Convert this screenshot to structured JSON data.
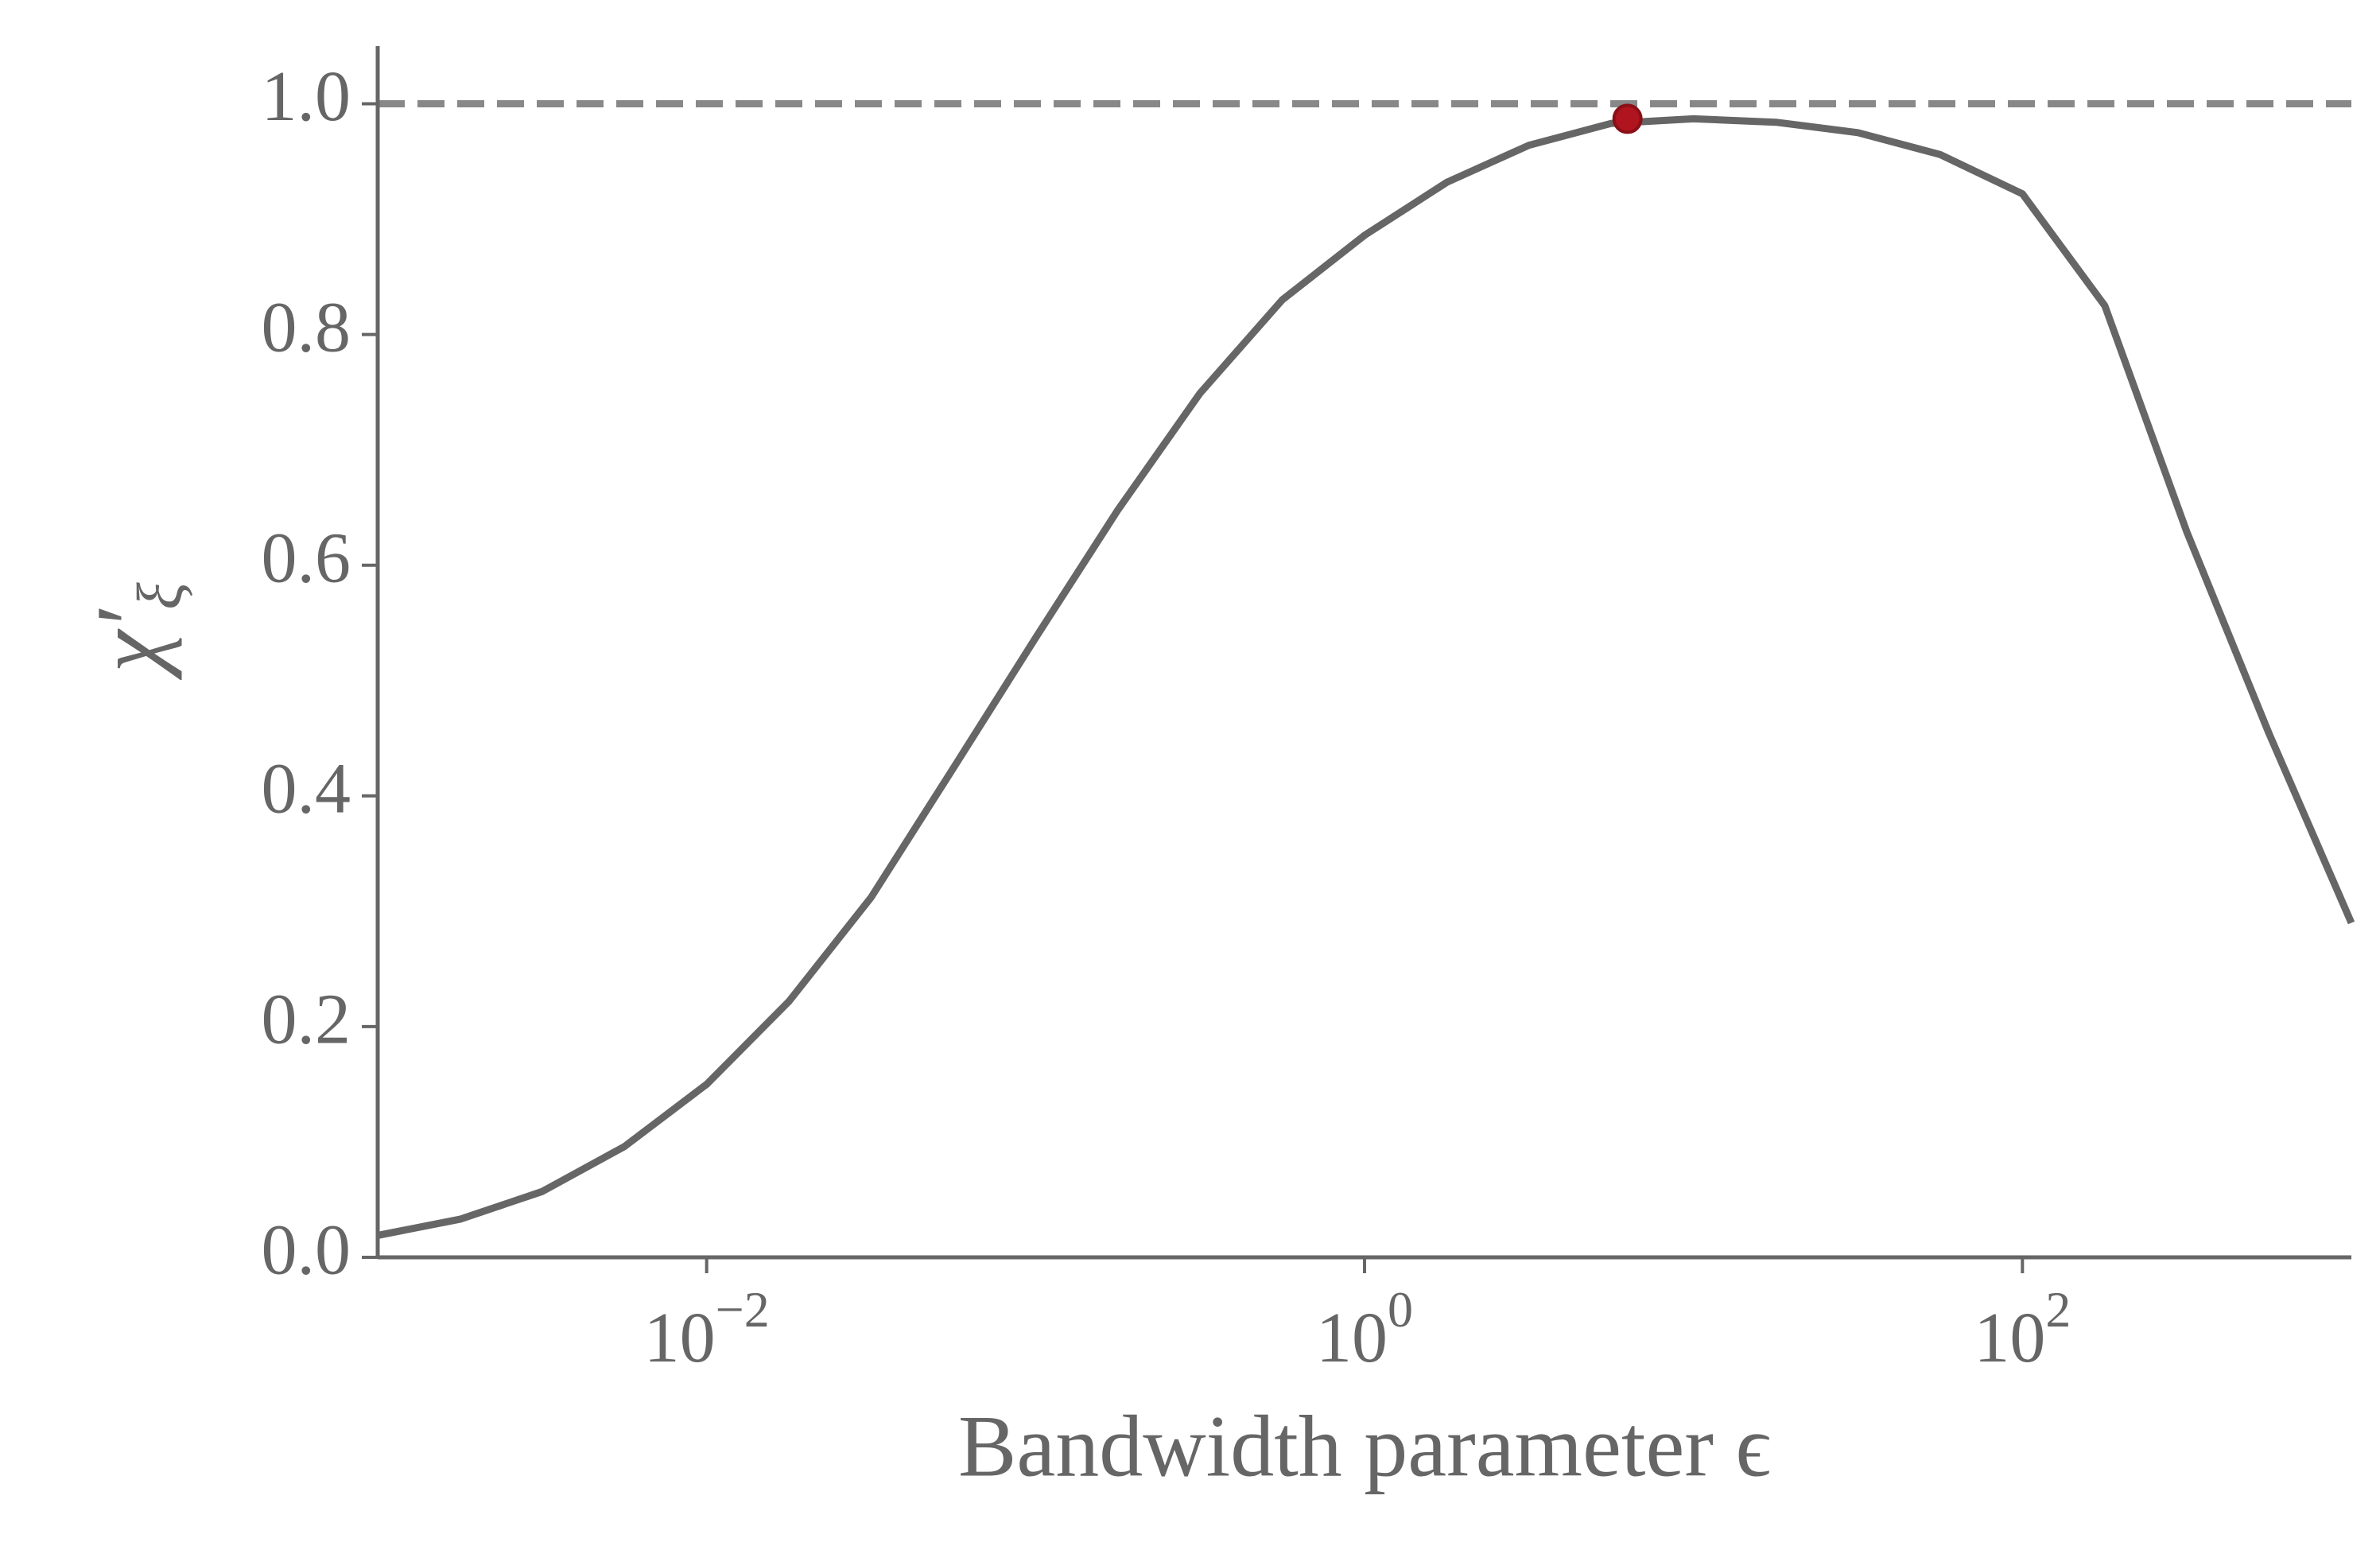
{
  "chart_data": {
    "type": "line",
    "xlabel": "Bandwidth parameter ϵ",
    "ylabel": {
      "text": "χ′",
      "subscript": "ξ"
    },
    "x": [
      0.001,
      0.00178,
      0.00316,
      0.00562,
      0.01,
      0.0178,
      0.0316,
      0.0562,
      0.1,
      0.178,
      0.316,
      0.562,
      1,
      1.78,
      3.16,
      5.62,
      10,
      17.8,
      31.6,
      56.2,
      100,
      178,
      316,
      562,
      1000
    ],
    "values": [
      0.019,
      0.033,
      0.057,
      0.096,
      0.15,
      0.222,
      0.312,
      0.424,
      0.537,
      0.648,
      0.749,
      0.83,
      0.886,
      0.932,
      0.964,
      0.983,
      0.987,
      0.984,
      0.975,
      0.956,
      0.922,
      0.825,
      0.629,
      0.454,
      0.29
    ],
    "color": "#666666",
    "xscale": "log",
    "xlim": [
      0.001,
      1000
    ],
    "ylim": [
      0,
      1.05
    ],
    "xticks": [
      {
        "value": 0.01,
        "label": "10",
        "exponent": "−2"
      },
      {
        "value": 1,
        "label": "10",
        "exponent": "0"
      },
      {
        "value": 100,
        "label": "10",
        "exponent": "2"
      }
    ],
    "yticks": [
      {
        "value": 0,
        "label": "0.0"
      },
      0.2,
      0.4,
      0.6,
      0.8,
      {
        "value": 1,
        "label": "1.0"
      }
    ],
    "reference_line": {
      "y": 1,
      "color": "#888888",
      "style": "dashed"
    },
    "highlight": {
      "x": 6.3,
      "y": 0.987,
      "color": "#b0141e"
    },
    "grid": false
  }
}
